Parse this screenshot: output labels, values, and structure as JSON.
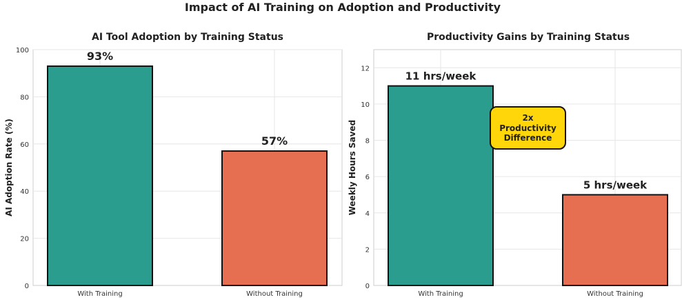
{
  "figure_title": "Impact of AI Training on Adoption and Productivity",
  "chart_data": [
    {
      "type": "bar",
      "title": "AI Tool Adoption by Training Status",
      "xlabel": "",
      "ylabel": "AI Adoption Rate (%)",
      "categories": [
        "With Training",
        "Without Training"
      ],
      "values": [
        93,
        57
      ],
      "value_labels": [
        "93%",
        "57%"
      ],
      "ylim": [
        0,
        100
      ],
      "yticks": [
        0,
        20,
        40,
        60,
        80,
        100
      ],
      "grid": true,
      "colors": [
        "#2a9d8f",
        "#e76f51"
      ]
    },
    {
      "type": "bar",
      "title": "Productivity Gains by Training Status",
      "xlabel": "",
      "ylabel": "Weekly Hours Saved",
      "categories": [
        "With Training",
        "Without Training"
      ],
      "values": [
        11,
        5
      ],
      "value_labels": [
        "11 hrs/week",
        "5 hrs/week"
      ],
      "ylim": [
        0,
        13
      ],
      "yticks": [
        0,
        2,
        4,
        6,
        8,
        10,
        12
      ],
      "grid": true,
      "colors": [
        "#2a9d8f",
        "#e76f51"
      ],
      "annotation": {
        "lines": [
          "2x",
          "Productivity",
          "Difference"
        ],
        "background": "#ffd60a"
      }
    }
  ]
}
